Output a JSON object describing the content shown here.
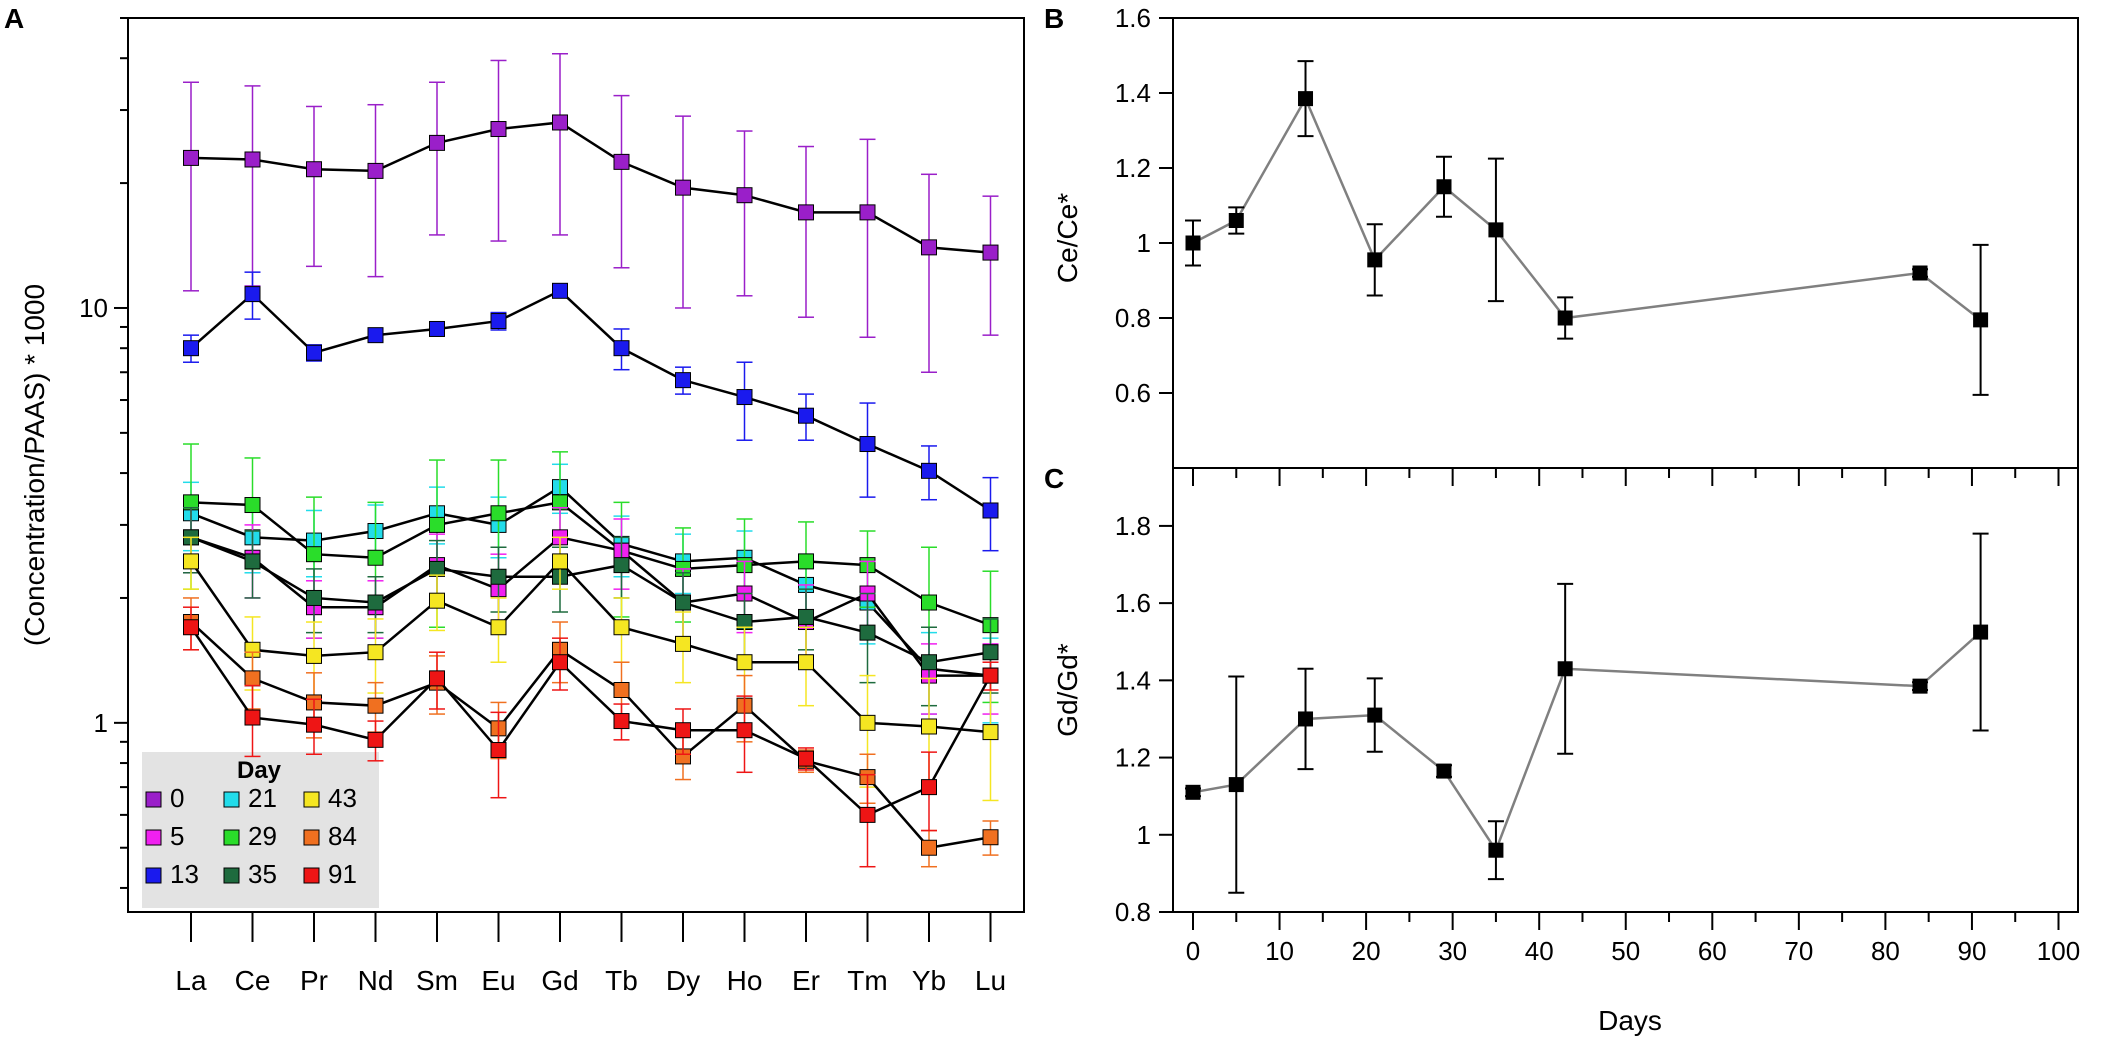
{
  "chart_data": [
    {
      "panel": "A",
      "type": "line",
      "ylabel": "(Concentration/PAAS) * 1000",
      "yscale": "log",
      "ylim": [
        0.35,
        50
      ],
      "yticks": [
        1,
        10
      ],
      "yticklabels": [
        "1",
        "10"
      ],
      "categories": [
        "La",
        "Ce",
        "Pr",
        "Nd",
        "Sm",
        "Eu",
        "Gd",
        "Tb",
        "Dy",
        "Ho",
        "Er",
        "Tm",
        "Yb",
        "Lu"
      ],
      "legend": {
        "title": "Day",
        "position": "bottom-left"
      },
      "series": [
        {
          "name": "0",
          "color": "#9a1fc9",
          "values": [
            23,
            22.8,
            21.6,
            21.4,
            25,
            27,
            28,
            22.5,
            19.5,
            18.7,
            17,
            17,
            14,
            13.6
          ],
          "err": [
            12,
            11.5,
            9,
            9.5,
            10,
            12.5,
            13,
            10,
            9.5,
            8,
            7.5,
            8.5,
            7,
            5
          ]
        },
        {
          "name": "13",
          "color": "#1a1aee",
          "values": [
            8,
            10.8,
            7.8,
            8.6,
            8.9,
            9.3,
            11,
            8,
            6.7,
            6.1,
            5.5,
            4.7,
            4.05,
            3.25
          ],
          "err": [
            0.6,
            1.4,
            0.35,
            0.3,
            0.2,
            0.45,
            0.3,
            0.9,
            0.5,
            1.3,
            0.7,
            1.2,
            0.6,
            0.65
          ]
        },
        {
          "name": "21",
          "color": "#22dcea",
          "values": [
            3.2,
            2.8,
            2.75,
            2.9,
            3.2,
            3.0,
            3.7,
            2.7,
            2.45,
            2.5,
            2.15,
            1.95,
            1.35,
            1.3
          ],
          "err": [
            0.6,
            0.5,
            0.5,
            0.45,
            0.5,
            0.5,
            0.5,
            0.45,
            0.4,
            0.4,
            0.4,
            0.4,
            0.3,
            0.3
          ]
        },
        {
          "name": "29",
          "color": "#2add2a",
          "values": [
            3.4,
            3.35,
            2.55,
            2.5,
            3.0,
            3.2,
            3.4,
            2.6,
            2.35,
            2.4,
            2.45,
            2.4,
            1.95,
            1.72
          ],
          "err": [
            1.3,
            1.0,
            0.95,
            0.9,
            1.3,
            1.1,
            1.1,
            0.8,
            0.6,
            0.7,
            0.6,
            0.5,
            0.7,
            0.6
          ]
        },
        {
          "name": "5",
          "color": "#f020f0",
          "values": [
            2.8,
            2.5,
            1.9,
            1.9,
            2.4,
            2.1,
            2.8,
            2.6,
            1.95,
            2.05,
            1.75,
            2.05,
            1.3,
            1.3
          ],
          "err": [
            0.5,
            0.5,
            0.3,
            0.3,
            0.45,
            0.45,
            0.5,
            0.5,
            0.4,
            0.4,
            0.4,
            0.4,
            0.25,
            0.25
          ]
        },
        {
          "name": "35",
          "color": "#1e6b3e",
          "values": [
            2.8,
            2.45,
            2.0,
            1.95,
            2.35,
            2.25,
            2.25,
            2.4,
            1.95,
            1.75,
            1.8,
            1.65,
            1.4,
            1.48
          ],
          "err": [
            0.5,
            0.45,
            0.35,
            0.3,
            0.4,
            0.4,
            0.4,
            0.4,
            0.35,
            0.3,
            0.3,
            0.4,
            0.3,
            0.3
          ]
        },
        {
          "name": "43",
          "color": "#f5e622",
          "values": [
            2.45,
            1.5,
            1.45,
            1.48,
            1.97,
            1.7,
            2.45,
            1.7,
            1.55,
            1.4,
            1.4,
            1.0,
            0.98,
            0.95
          ],
          "err": [
            0.35,
            0.3,
            0.3,
            0.3,
            0.3,
            0.3,
            0.35,
            0.3,
            0.3,
            0.3,
            0.3,
            0.3,
            0.3,
            0.3
          ]
        },
        {
          "name": "84",
          "color": "#f07020",
          "values": [
            1.75,
            1.28,
            1.12,
            1.1,
            1.25,
            0.97,
            1.5,
            1.2,
            0.83,
            1.1,
            0.81,
            0.74,
            0.5,
            0.53
          ],
          "err": [
            0.25,
            0.2,
            0.2,
            0.15,
            0.2,
            0.15,
            0.25,
            0.2,
            0.1,
            0.2,
            0.05,
            0.1,
            0.05,
            0.05
          ]
        },
        {
          "name": "91",
          "color": "#ee1515",
          "values": [
            1.7,
            1.03,
            0.99,
            0.91,
            1.28,
            0.86,
            1.4,
            1.01,
            0.96,
            0.96,
            0.82,
            0.6,
            0.7,
            1.3
          ],
          "err": [
            0.2,
            0.2,
            0.15,
            0.1,
            0.2,
            0.2,
            0.2,
            0.1,
            0.12,
            0.2,
            0.05,
            0.15,
            0.15,
            0.1
          ]
        }
      ],
      "legend_entries": [
        "0",
        "5",
        "13",
        "21",
        "29",
        "35",
        "43",
        "84",
        "91"
      ]
    },
    {
      "panel": "B",
      "type": "scatter",
      "ylabel": "Ce/Ce*",
      "ylim": [
        0.4,
        1.6
      ],
      "yticks": [
        0.6,
        0.8,
        1.0,
        1.2,
        1.4,
        1.6
      ],
      "yticklabels": [
        "0.6",
        "0.8",
        "1",
        "1.2",
        "1.4",
        "1.6"
      ],
      "xlim": [
        0,
        100
      ],
      "x": [
        0,
        5,
        13,
        21,
        29,
        35,
        43,
        84,
        91
      ],
      "y": [
        1.0,
        1.06,
        1.385,
        0.955,
        1.15,
        1.035,
        0.8,
        0.92,
        0.795
      ],
      "err": [
        0.06,
        0.035,
        0.1,
        0.095,
        0.08,
        0.19,
        0.055,
        0.01,
        0.2
      ]
    },
    {
      "panel": "C",
      "type": "scatter",
      "ylabel": "Gd/Gd*",
      "ylim": [
        0.8,
        1.95
      ],
      "yticks": [
        0.8,
        1.0,
        1.2,
        1.4,
        1.6,
        1.8
      ],
      "yticklabels": [
        "0.8",
        "1",
        "1.2",
        "1.4",
        "1.6",
        "1.8"
      ],
      "xlim": [
        0,
        100
      ],
      "xticks": [
        0,
        10,
        20,
        30,
        40,
        50,
        60,
        70,
        80,
        90,
        100
      ],
      "xticklabels": [
        "0",
        "10",
        "20",
        "30",
        "40",
        "50",
        "60",
        "70",
        "80",
        "90",
        "100"
      ],
      "xlabel": "Days",
      "x": [
        0,
        5,
        13,
        21,
        29,
        35,
        43,
        84,
        91
      ],
      "y": [
        1.11,
        1.13,
        1.3,
        1.31,
        1.165,
        0.96,
        1.43,
        1.385,
        1.525
      ],
      "err": [
        0.01,
        0.28,
        0.13,
        0.095,
        0.015,
        0.075,
        0.22,
        0.01,
        0.255
      ]
    }
  ],
  "labels": {
    "panel_a": "A",
    "panel_b": "B",
    "panel_c": "C",
    "legend_title": "Day"
  }
}
